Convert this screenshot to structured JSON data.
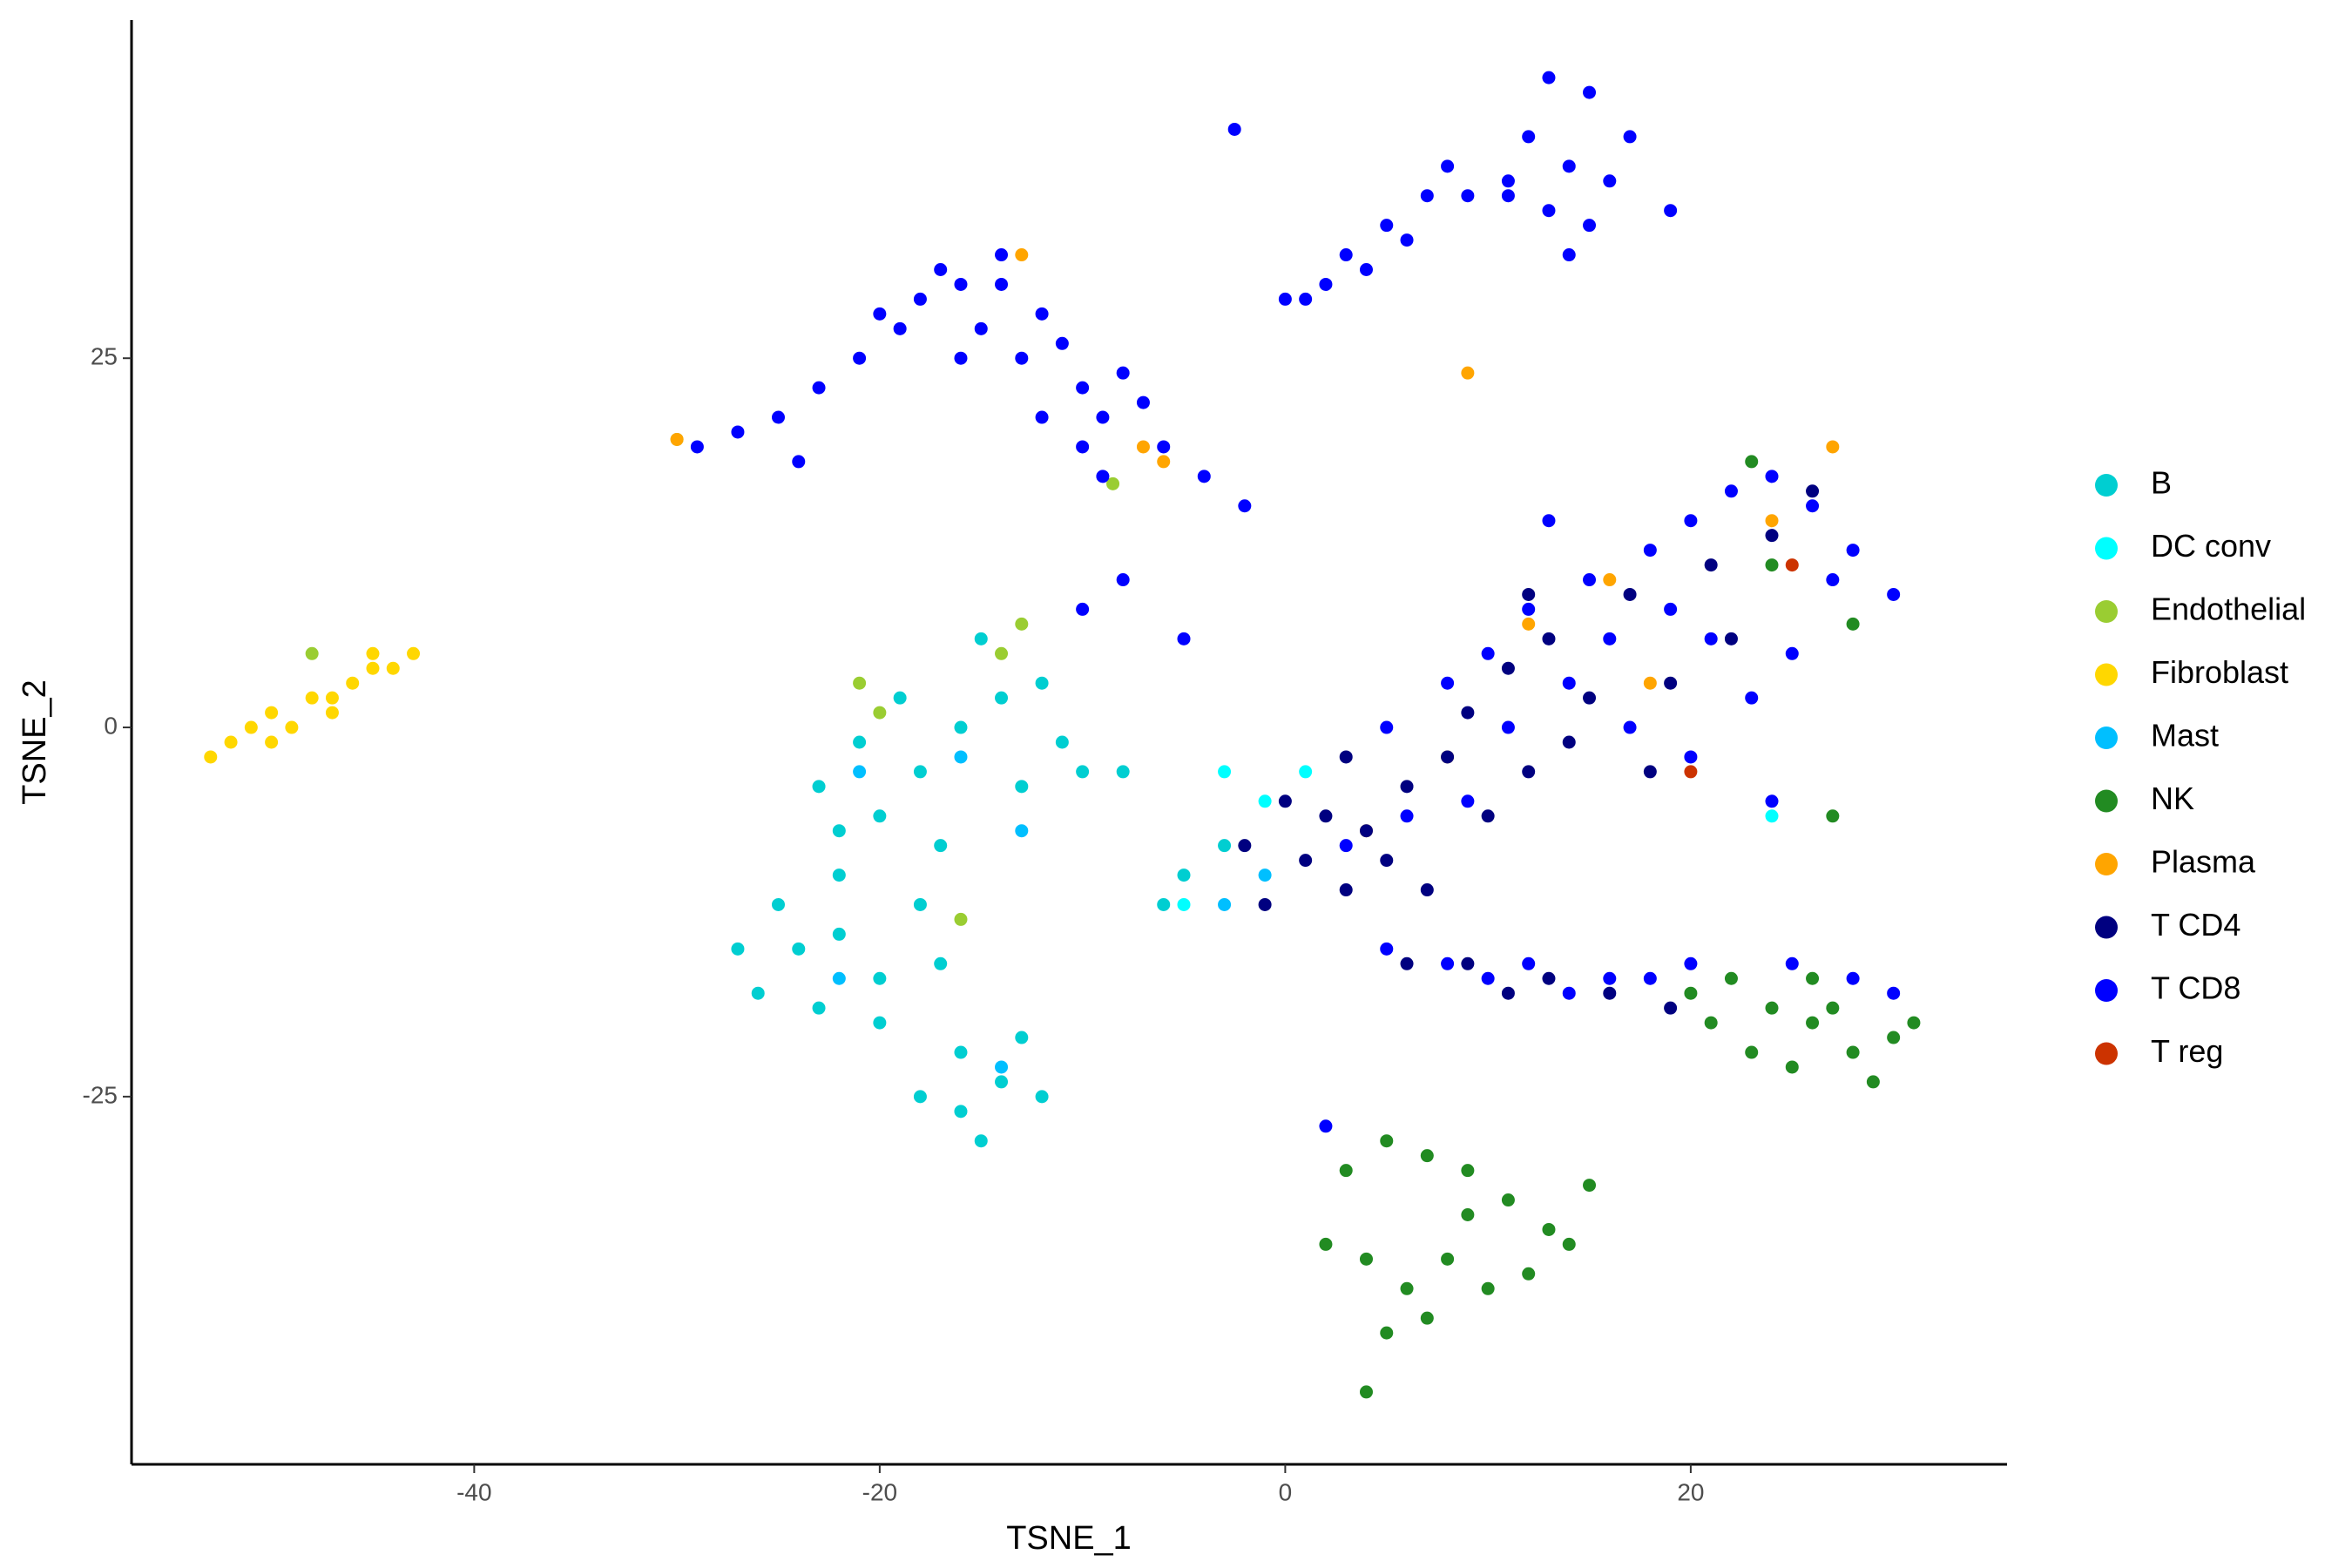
{
  "chart_data": {
    "type": "scatter",
    "x_label": "TSNE_1",
    "y_label": "TSNE_2",
    "xlim": [
      -56.9,
      35.6
    ],
    "ylim": [
      -49.9,
      47.9
    ],
    "xticks": [
      -40,
      -20,
      0,
      20
    ],
    "yticks": [
      -25,
      0,
      25
    ],
    "grid": false,
    "legend": "right",
    "series": [
      {
        "name": "B",
        "color": "#00CED1",
        "x": [
          -23,
          -21,
          -20,
          -18,
          -16,
          -14,
          -13,
          -12,
          -15,
          -11,
          -10,
          -8,
          -19,
          -22,
          -17,
          -25,
          -24,
          -22,
          -20,
          -18,
          -26,
          -23,
          -17,
          -16,
          -14,
          -16,
          -18,
          -13,
          -15,
          -12,
          -20,
          -27,
          -22,
          -6,
          -5,
          -3
        ],
        "y": [
          -4,
          -1,
          -6,
          -3,
          0,
          2,
          -4,
          3,
          6,
          -1,
          -3,
          -3,
          2,
          -7,
          -8,
          -12,
          -15,
          -14,
          -17,
          -12,
          -18,
          -19,
          -16,
          -22,
          -24,
          -26,
          -25,
          -21,
          -28,
          -25,
          -20,
          -15,
          -10,
          -12,
          -10,
          -8
        ]
      },
      {
        "name": "DC conv",
        "color": "#00FFFF",
        "x": [
          -1,
          -3,
          24,
          -5,
          1
        ],
        "y": [
          -5,
          -3,
          -6,
          -12,
          -3
        ]
      },
      {
        "name": "Endothelial",
        "color": "#9ACD32",
        "x": [
          -48,
          -30,
          -8.5,
          -14,
          -21,
          -16,
          -13,
          -20
        ],
        "y": [
          5,
          19.5,
          16.5,
          5,
          3,
          -13,
          7,
          1
        ]
      },
      {
        "name": "Fibroblast",
        "color": "#FFD700",
        "x": [
          -53,
          -52,
          -51,
          -50,
          -49,
          -48,
          -47,
          -46,
          -45,
          -44,
          -43,
          -50,
          -47,
          -45
        ],
        "y": [
          -2,
          -1,
          0,
          1,
          0,
          2,
          2,
          3,
          4,
          4,
          5,
          -1,
          1,
          5
        ]
      },
      {
        "name": "Mast",
        "color": "#00BFFF",
        "x": [
          -16,
          -13,
          -22,
          -14,
          -1,
          -3,
          -21
        ],
        "y": [
          -2,
          -7,
          -17,
          -23,
          -10,
          -12,
          -3
        ]
      },
      {
        "name": "NK",
        "color": "#228B22",
        "x": [
          3,
          5,
          7,
          9,
          11,
          13,
          15,
          8,
          6,
          4,
          2,
          10,
          12,
          5,
          7,
          14,
          9,
          4,
          20,
          22,
          24,
          26,
          28,
          30,
          23,
          25,
          27,
          29,
          21,
          31,
          26,
          23,
          28,
          27,
          24
        ],
        "y": [
          -30,
          -28,
          -29,
          -33,
          -32,
          -34,
          -31,
          -36,
          -38,
          -36,
          -35,
          -38,
          -37,
          -41,
          -40,
          -35,
          -30,
          -45,
          -18,
          -17,
          -19,
          -20,
          -22,
          -21,
          -22,
          -23,
          -19,
          -24,
          -20,
          -20,
          -17,
          18,
          7,
          -6,
          11
        ]
      },
      {
        "name": "Plasma",
        "color": "#FFA500",
        "x": [
          -13,
          -7,
          9,
          16,
          18,
          8,
          12,
          27,
          24,
          -6,
          -30,
          4
        ],
        "y": [
          32,
          19,
          24,
          10,
          3,
          -2,
          7,
          19,
          14,
          18,
          19.5,
          -7
        ]
      },
      {
        "name": "T CD4",
        "color": "#000080",
        "x": [
          0,
          -2,
          1,
          3,
          2,
          4,
          5,
          7,
          6,
          8,
          10,
          12,
          9,
          11,
          13,
          15,
          14,
          17,
          19,
          22,
          18,
          21,
          24,
          26,
          9,
          11,
          13,
          16,
          6,
          19,
          -1,
          3,
          12
        ],
        "y": [
          -5,
          -8,
          -9,
          -11,
          -6,
          -7,
          -9,
          -11,
          -4,
          -2,
          -6,
          -3,
          1,
          4,
          6,
          2,
          -1,
          9,
          3,
          6,
          -3,
          11,
          13,
          16,
          -16,
          -18,
          -17,
          -18,
          -16,
          -19,
          -12,
          -2,
          9
        ]
      },
      {
        "name": "T CD8",
        "color": "#0000FF",
        "x": [
          -29,
          -27,
          -25,
          -23,
          -21,
          -19,
          -18,
          -16,
          -14,
          -12,
          -15,
          -13,
          -11,
          -10,
          -8,
          -9,
          -7,
          -12,
          -10,
          -16,
          -20,
          -14,
          -17,
          -6,
          -4,
          -2,
          -9,
          -24,
          -2.5,
          0,
          2,
          3,
          5,
          7,
          9,
          4,
          6,
          8,
          1,
          11,
          13,
          15,
          12,
          14,
          16,
          13,
          15,
          11,
          17,
          14,
          19,
          5,
          8,
          10,
          12,
          15,
          18,
          20,
          22,
          24,
          26,
          28,
          30,
          14,
          17,
          20,
          23,
          25,
          27,
          11,
          9,
          6,
          3,
          19,
          21,
          16,
          24,
          13,
          -8,
          -10,
          -5,
          5,
          8,
          10,
          12,
          14,
          16,
          18,
          20,
          25,
          28,
          30,
          2
        ],
        "y": [
          19,
          20,
          21,
          23,
          25,
          27,
          29,
          30,
          30,
          28,
          27,
          25,
          26,
          23,
          24,
          21,
          22,
          21,
          19,
          25,
          28,
          32,
          31,
          19,
          17,
          15,
          17,
          18,
          40.5,
          29,
          30,
          32,
          34,
          36,
          36,
          31,
          33,
          38,
          29,
          37,
          44,
          43,
          40,
          38,
          37,
          35,
          34,
          36,
          40,
          32,
          35,
          0,
          3,
          5,
          8,
          10,
          12,
          14,
          16,
          17,
          15,
          12,
          9,
          3,
          0,
          -2,
          2,
          5,
          10,
          0,
          -5,
          -6,
          -8,
          8,
          6,
          6,
          -5,
          14,
          10,
          8,
          6,
          -15,
          -16,
          -17,
          -16,
          -18,
          -17,
          -17,
          -16,
          -16,
          -17,
          -18,
          -27
        ]
      },
      {
        "name": "T reg",
        "color": "#CC3300",
        "x": [
          25,
          20
        ],
        "y": [
          11,
          -3
        ]
      }
    ]
  }
}
